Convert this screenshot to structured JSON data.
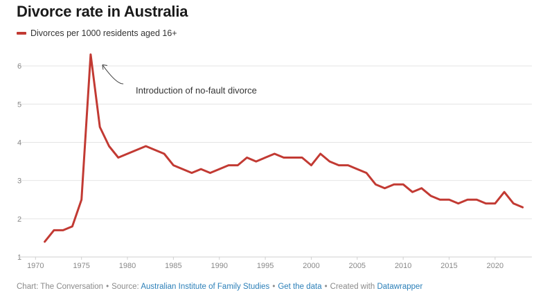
{
  "chart_data": {
    "type": "line",
    "title": "Divorce rate in Australia",
    "series": [
      {
        "name": "Divorces per 1000 residents aged 16+",
        "color": "#c23a33",
        "x": [
          1971,
          1972,
          1973,
          1974,
          1975,
          1976,
          1977,
          1978,
          1979,
          1980,
          1981,
          1982,
          1983,
          1984,
          1985,
          1986,
          1987,
          1988,
          1989,
          1990,
          1991,
          1992,
          1993,
          1994,
          1995,
          1996,
          1997,
          1998,
          1999,
          2000,
          2001,
          2002,
          2003,
          2004,
          2005,
          2006,
          2007,
          2008,
          2009,
          2010,
          2011,
          2012,
          2013,
          2014,
          2015,
          2016,
          2017,
          2018,
          2019,
          2020,
          2021,
          2022,
          2023
        ],
        "values": [
          1.4,
          1.7,
          1.7,
          1.8,
          2.5,
          6.3,
          4.4,
          3.9,
          3.6,
          3.7,
          3.8,
          3.9,
          3.8,
          3.7,
          3.4,
          3.3,
          3.2,
          3.3,
          3.2,
          3.3,
          3.4,
          3.4,
          3.6,
          3.5,
          3.6,
          3.7,
          3.6,
          3.6,
          3.6,
          3.4,
          3.7,
          3.5,
          3.4,
          3.4,
          3.3,
          3.2,
          2.9,
          2.8,
          2.9,
          2.9,
          2.7,
          2.8,
          2.6,
          2.5,
          2.5,
          2.4,
          2.5,
          2.5,
          2.4,
          2.4,
          2.7,
          2.4,
          2.3
        ]
      }
    ],
    "x_ticks": [
      1970,
      1975,
      1980,
      1985,
      1990,
      1995,
      2000,
      2005,
      2010,
      2015,
      2020
    ],
    "y_ticks": [
      1,
      2,
      3,
      4,
      5,
      6
    ],
    "xlim": [
      1969.6,
      2024
    ],
    "ylim": [
      1,
      6.6
    ],
    "grid": true,
    "legend_position": "top-left",
    "annotation": {
      "text": "Introduction of no-fault divorce",
      "target_x": 1976,
      "target_y": 6.3
    }
  },
  "footer": {
    "chart_by": "Chart: The Conversation",
    "source_label": "Source:",
    "source_link": "Australian Institute of Family Studies",
    "data_link": "Get the data",
    "created_label": "Created with",
    "created_link": "Datawrapper"
  }
}
